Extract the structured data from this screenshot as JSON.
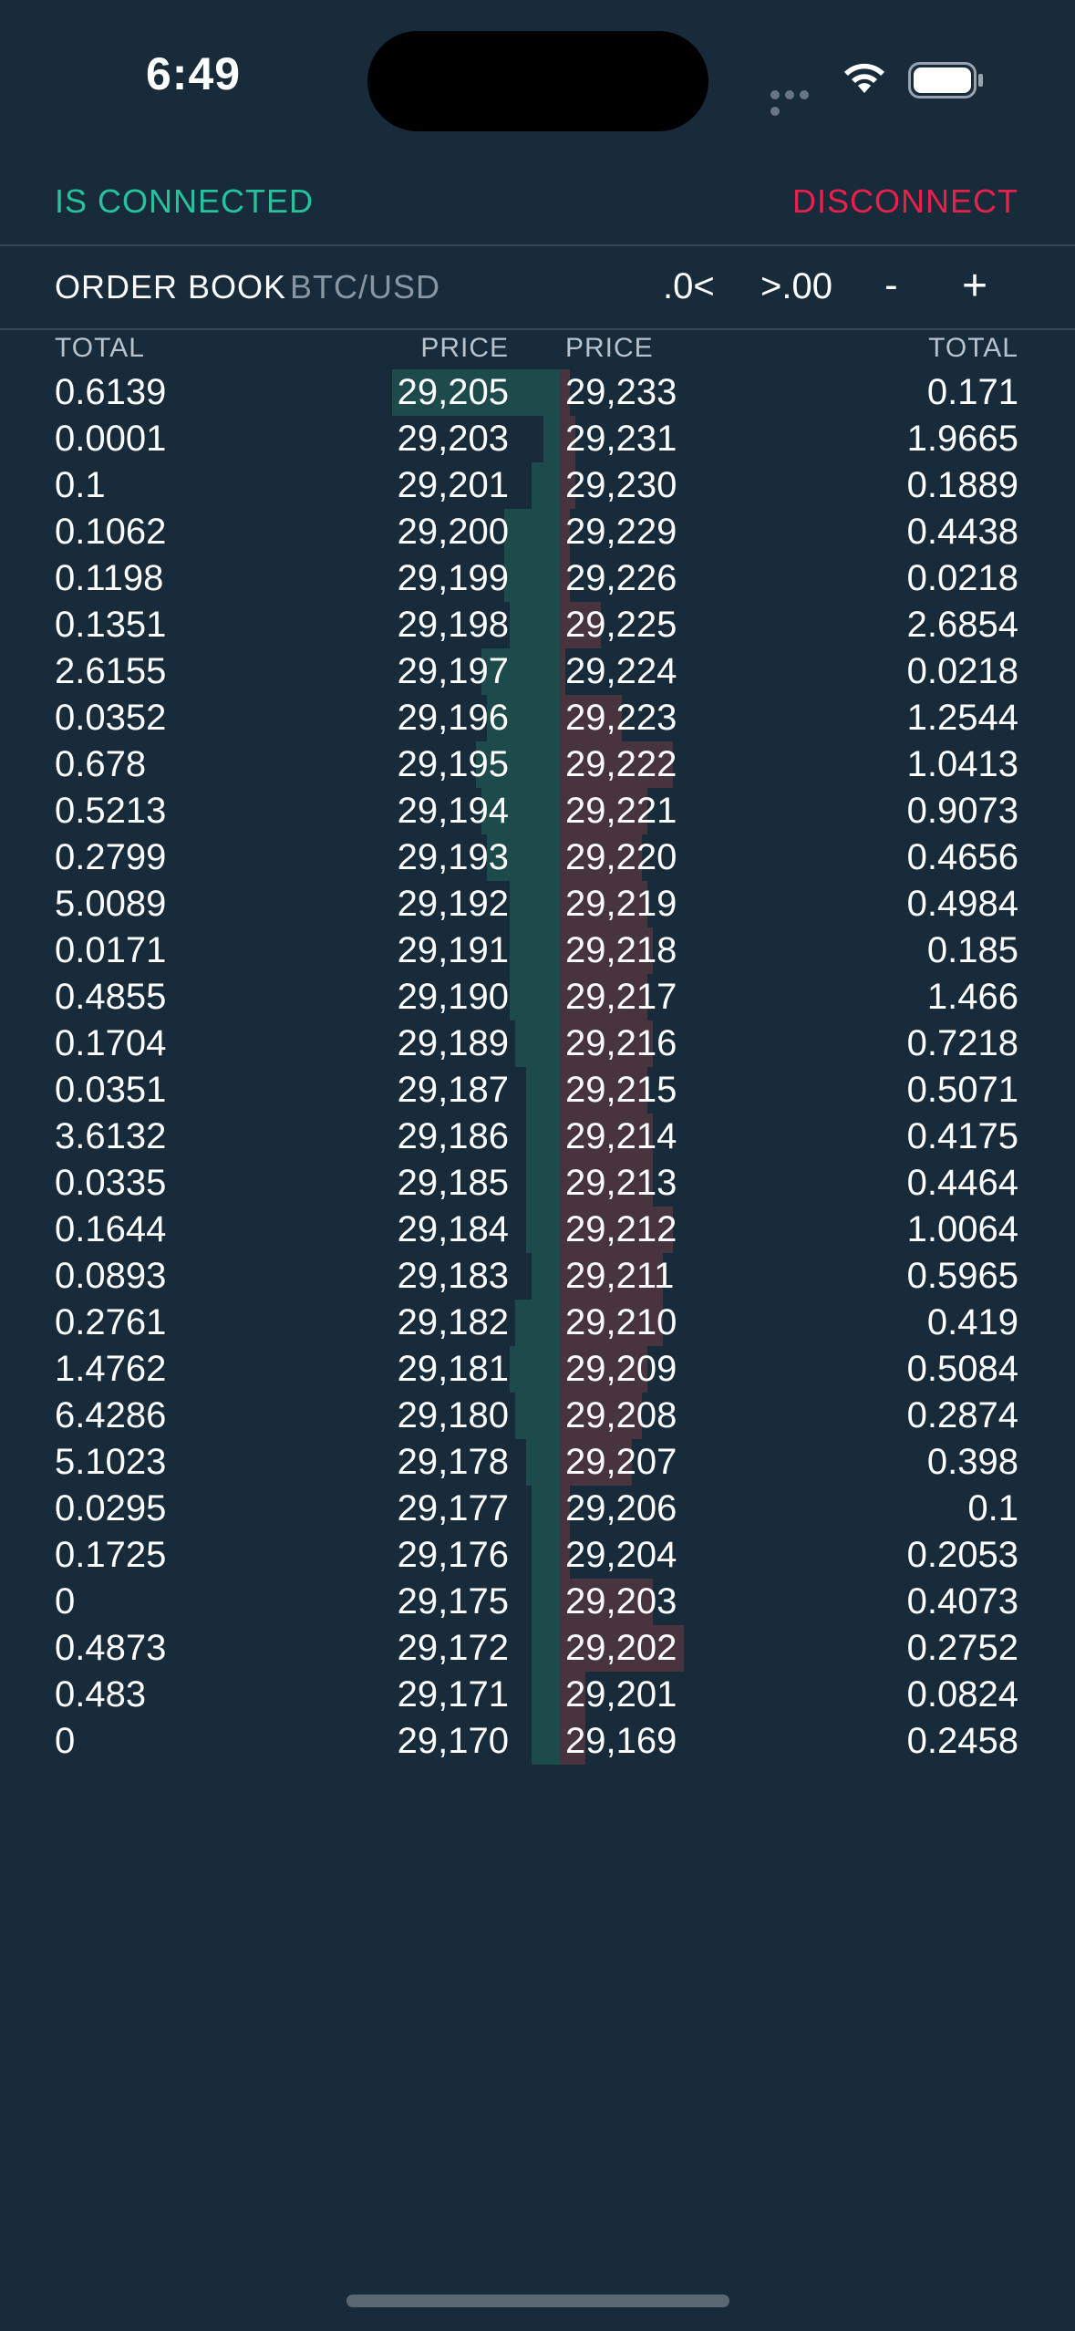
{
  "status_bar": {
    "time": "6:49"
  },
  "connection": {
    "status": "IS CONNECTED",
    "action": "DISCONNECT"
  },
  "header": {
    "title": "ORDER BOOK",
    "pair": "BTC/USD",
    "decimals_fewer": ".0<",
    "decimals_more": ">.00",
    "zoom_out": "-",
    "zoom_in": "+"
  },
  "columns": {
    "bid_total": "TOTAL",
    "bid_price": "PRICE",
    "ask_price": "PRICE",
    "ask_total": "TOTAL"
  },
  "colors": {
    "background": "#172b3b",
    "connected": "#27c29c",
    "disconnect": "#e8204c",
    "bid_depth": "#1d4a4a",
    "ask_depth": "#47343f"
  },
  "rows": [
    {
      "bid_total": "0.6139",
      "bid_price": "29,205",
      "ask_price": "29,233",
      "ask_total": "0.171",
      "bid_depth": 0.3,
      "ask_depth": 0.02
    },
    {
      "bid_total": "0.0001",
      "bid_price": "29,203",
      "ask_price": "29,231",
      "ask_total": "1.9665",
      "bid_depth": 0.03,
      "ask_depth": 0.03
    },
    {
      "bid_total": "0.1",
      "bid_price": "29,201",
      "ask_price": "29,230",
      "ask_total": "0.1889",
      "bid_depth": 0.05,
      "ask_depth": 0.03
    },
    {
      "bid_total": "0.1062",
      "bid_price": "29,200",
      "ask_price": "29,229",
      "ask_total": "0.4438",
      "bid_depth": 0.1,
      "ask_depth": 0.02
    },
    {
      "bid_total": "0.1198",
      "bid_price": "29,199",
      "ask_price": "29,226",
      "ask_total": "0.0218",
      "bid_depth": 0.1,
      "ask_depth": 0.02
    },
    {
      "bid_total": "0.1351",
      "bid_price": "29,198",
      "ask_price": "29,225",
      "ask_total": "2.6854",
      "bid_depth": 0.09,
      "ask_depth": 0.08
    },
    {
      "bid_total": "2.6155",
      "bid_price": "29,197",
      "ask_price": "29,224",
      "ask_total": "0.0218",
      "bid_depth": 0.14,
      "ask_depth": 0.01
    },
    {
      "bid_total": "0.0352",
      "bid_price": "29,196",
      "ask_price": "29,223",
      "ask_total": "1.2544",
      "bid_depth": 0.13,
      "ask_depth": 0.12
    },
    {
      "bid_total": "0.678",
      "bid_price": "29,195",
      "ask_price": "29,222",
      "ask_total": "1.0413",
      "bid_depth": 0.15,
      "ask_depth": 0.22
    },
    {
      "bid_total": "0.5213",
      "bid_price": "29,194",
      "ask_price": "29,221",
      "ask_total": "0.9073",
      "bid_depth": 0.14,
      "ask_depth": 0.17
    },
    {
      "bid_total": "0.2799",
      "bid_price": "29,193",
      "ask_price": "29,220",
      "ask_total": "0.4656",
      "bid_depth": 0.13,
      "ask_depth": 0.16
    },
    {
      "bid_total": "5.0089",
      "bid_price": "29,192",
      "ask_price": "29,219",
      "ask_total": "0.4984",
      "bid_depth": 0.09,
      "ask_depth": 0.17
    },
    {
      "bid_total": "0.0171",
      "bid_price": "29,191",
      "ask_price": "29,218",
      "ask_total": "0.185",
      "bid_depth": 0.09,
      "ask_depth": 0.18
    },
    {
      "bid_total": "0.4855",
      "bid_price": "29,190",
      "ask_price": "29,217",
      "ask_total": "1.466",
      "bid_depth": 0.09,
      "ask_depth": 0.17
    },
    {
      "bid_total": "0.1704",
      "bid_price": "29,189",
      "ask_price": "29,216",
      "ask_total": "0.7218",
      "bid_depth": 0.08,
      "ask_depth": 0.18
    },
    {
      "bid_total": "0.0351",
      "bid_price": "29,187",
      "ask_price": "29,215",
      "ask_total": "0.5071",
      "bid_depth": 0.06,
      "ask_depth": 0.17
    },
    {
      "bid_total": "3.6132",
      "bid_price": "29,186",
      "ask_price": "29,214",
      "ask_total": "0.4175",
      "bid_depth": 0.06,
      "ask_depth": 0.18
    },
    {
      "bid_total": "0.0335",
      "bid_price": "29,185",
      "ask_price": "29,213",
      "ask_total": "0.4464",
      "bid_depth": 0.06,
      "ask_depth": 0.18
    },
    {
      "bid_total": "0.1644",
      "bid_price": "29,184",
      "ask_price": "29,212",
      "ask_total": "1.0064",
      "bid_depth": 0.06,
      "ask_depth": 0.22
    },
    {
      "bid_total": "0.0893",
      "bid_price": "29,183",
      "ask_price": "29,211",
      "ask_total": "0.5965",
      "bid_depth": 0.05,
      "ask_depth": 0.2
    },
    {
      "bid_total": "0.2761",
      "bid_price": "29,182",
      "ask_price": "29,210",
      "ask_total": "0.419",
      "bid_depth": 0.08,
      "ask_depth": 0.2
    },
    {
      "bid_total": "1.4762",
      "bid_price": "29,181",
      "ask_price": "29,209",
      "ask_total": "0.5084",
      "bid_depth": 0.09,
      "ask_depth": 0.17
    },
    {
      "bid_total": "6.4286",
      "bid_price": "29,180",
      "ask_price": "29,208",
      "ask_total": "0.2874",
      "bid_depth": 0.08,
      "ask_depth": 0.16
    },
    {
      "bid_total": "5.1023",
      "bid_price": "29,178",
      "ask_price": "29,207",
      "ask_total": "0.398",
      "bid_depth": 0.06,
      "ask_depth": 0.14
    },
    {
      "bid_total": "0.0295",
      "bid_price": "29,177",
      "ask_price": "29,206",
      "ask_total": "0.1",
      "bid_depth": 0.05,
      "ask_depth": 0.02
    },
    {
      "bid_total": "0.1725",
      "bid_price": "29,176",
      "ask_price": "29,204",
      "ask_total": "0.2053",
      "bid_depth": 0.05,
      "ask_depth": 0.02
    },
    {
      "bid_total": "0",
      "bid_price": "29,175",
      "ask_price": "29,203",
      "ask_total": "0.4073",
      "bid_depth": 0.05,
      "ask_depth": 0.18
    },
    {
      "bid_total": "0.4873",
      "bid_price": "29,172",
      "ask_price": "29,202",
      "ask_total": "0.2752",
      "bid_depth": 0.05,
      "ask_depth": 0.24
    },
    {
      "bid_total": "0.483",
      "bid_price": "29,171",
      "ask_price": "29,201",
      "ask_total": "0.0824",
      "bid_depth": 0.05,
      "ask_depth": 0.05
    },
    {
      "bid_total": "0",
      "bid_price": "29,170",
      "ask_price": "29,169",
      "ask_total": "0.2458",
      "bid_depth": 0.05,
      "ask_depth": 0.05
    }
  ]
}
